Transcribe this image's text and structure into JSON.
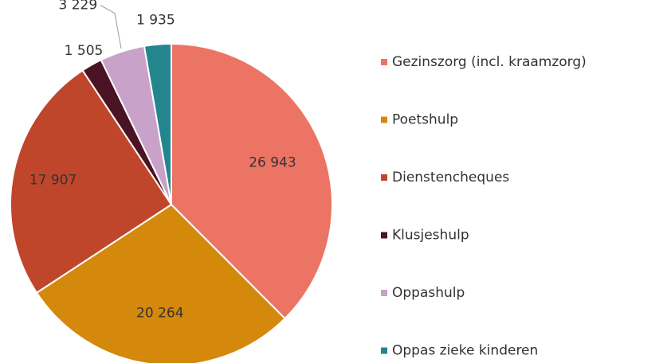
{
  "chart_data": {
    "type": "pie",
    "categories": [
      "Gezinszorg (incl. kraamzorg)",
      "Poetshulp",
      "Dienstencheques",
      "Klusjeshulp",
      "Oppashulp",
      "Oppas zieke kinderen"
    ],
    "values": [
      26943,
      20264,
      17907,
      1505,
      3229,
      1935
    ],
    "value_labels": [
      "26 943",
      "20 264",
      "17 907",
      "1 505",
      "3 229",
      "1 935"
    ],
    "colors": [
      "#ec7464",
      "#d4880c",
      "#c0462b",
      "#4b1424",
      "#c8a2c8",
      "#23868f"
    ],
    "legend": "right"
  }
}
